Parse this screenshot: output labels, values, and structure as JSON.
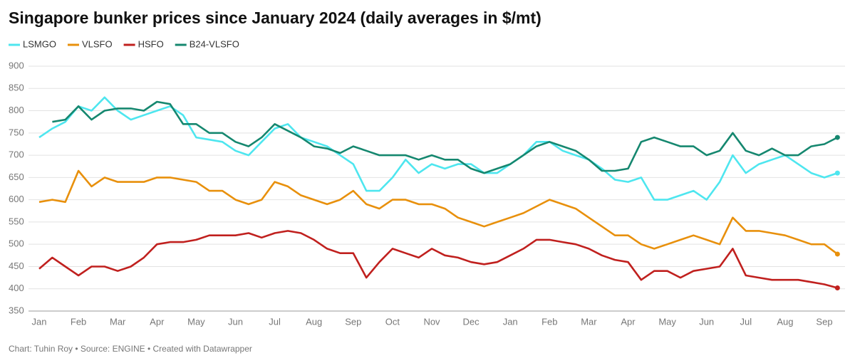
{
  "chart_data": {
    "type": "line",
    "title": "Singapore bunker prices since January 2024 (daily averages in $/mt)",
    "source": "Chart: Tuhin Roy • Source: ENGINE • Created with Datawrapper",
    "categories": [
      "Jan",
      null,
      null,
      "Feb",
      null,
      null,
      "Mar",
      null,
      null,
      "Apr",
      null,
      null,
      "May",
      null,
      null,
      "Jun",
      null,
      null,
      "Jul",
      null,
      null,
      "Aug",
      null,
      null,
      "Sep",
      null,
      null,
      "Oct",
      null,
      null,
      "Nov",
      null,
      null,
      "Dec",
      null,
      null,
      "Jan",
      null,
      null,
      "Feb",
      null,
      null,
      "Mar",
      null,
      null,
      "Apr",
      null,
      null,
      "May",
      null,
      null,
      "Jun",
      null,
      null,
      "Jul",
      null,
      null,
      "Aug",
      null,
      null,
      "Sep",
      null
    ],
    "series": [
      {
        "name": "LSMGO",
        "color": "#4ee6ef",
        "values": [
          740,
          760,
          775,
          810,
          800,
          830,
          800,
          780,
          790,
          800,
          810,
          790,
          740,
          735,
          730,
          710,
          700,
          730,
          760,
          770,
          740,
          730,
          720,
          700,
          680,
          620,
          620,
          650,
          690,
          660,
          680,
          670,
          680,
          680,
          660,
          660,
          680,
          700,
          730,
          730,
          710,
          700,
          690,
          670,
          645,
          640,
          650,
          600,
          600,
          610,
          620,
          600,
          640,
          700,
          660,
          680,
          690,
          700,
          680,
          660,
          650,
          660
        ]
      },
      {
        "name": "VLSFO",
        "color": "#e8900c",
        "values": [
          595,
          600,
          595,
          665,
          630,
          650,
          640,
          640,
          640,
          650,
          650,
          645,
          640,
          620,
          620,
          600,
          590,
          600,
          640,
          630,
          610,
          600,
          590,
          600,
          620,
          590,
          580,
          600,
          600,
          590,
          590,
          580,
          560,
          550,
          540,
          550,
          560,
          570,
          585,
          600,
          590,
          580,
          560,
          540,
          520,
          520,
          500,
          490,
          500,
          510,
          520,
          510,
          500,
          560,
          530,
          530,
          525,
          520,
          510,
          500,
          500,
          478
        ]
      },
      {
        "name": "HSFO",
        "color": "#c0201e",
        "values": [
          445,
          470,
          450,
          430,
          450,
          450,
          440,
          450,
          470,
          500,
          505,
          505,
          510,
          520,
          520,
          520,
          525,
          515,
          525,
          530,
          525,
          510,
          490,
          480,
          480,
          425,
          460,
          490,
          480,
          470,
          490,
          475,
          470,
          460,
          455,
          460,
          475,
          490,
          510,
          510,
          505,
          500,
          490,
          475,
          465,
          460,
          420,
          440,
          440,
          425,
          440,
          445,
          450,
          490,
          430,
          425,
          420,
          420,
          420,
          415,
          410,
          402
        ]
      },
      {
        "name": "B24-VLSFO",
        "color": "#15876f",
        "values": [
          null,
          775,
          780,
          810,
          780,
          800,
          805,
          805,
          800,
          820,
          815,
          770,
          770,
          750,
          750,
          730,
          720,
          740,
          770,
          755,
          740,
          720,
          715,
          705,
          720,
          710,
          700,
          700,
          700,
          690,
          700,
          690,
          690,
          670,
          660,
          670,
          680,
          700,
          720,
          730,
          720,
          710,
          690,
          665,
          665,
          670,
          730,
          740,
          730,
          720,
          720,
          700,
          710,
          750,
          710,
          700,
          715,
          700,
          700,
          720,
          725,
          740
        ]
      }
    ],
    "ylim": [
      350,
      900
    ],
    "yticks": [
      350,
      400,
      450,
      500,
      550,
      600,
      650,
      700,
      750,
      800,
      850,
      900
    ],
    "grid": true
  }
}
